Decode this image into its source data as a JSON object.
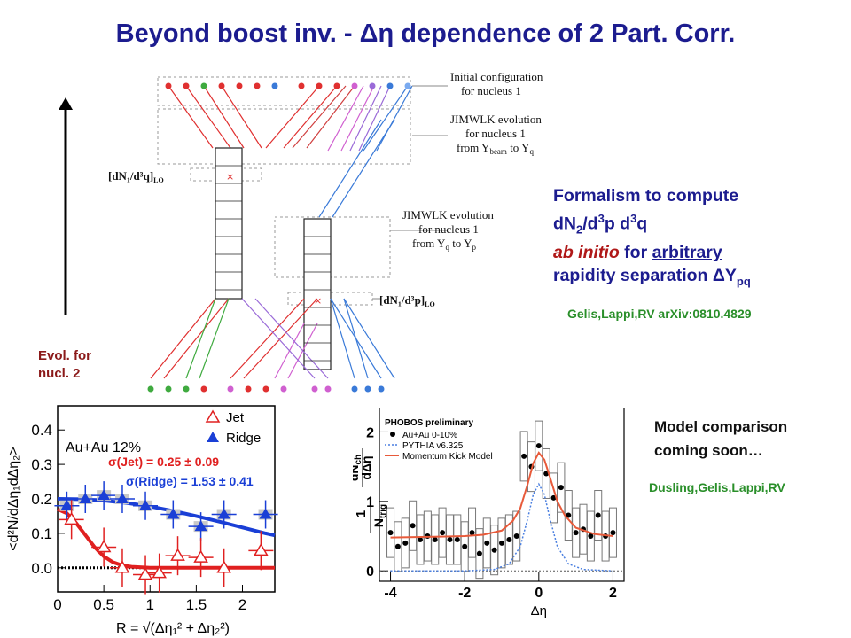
{
  "title": "Beyond boost inv. - Δη dependence of 2 Part. Corr.",
  "evol_label": [
    "Evol. for",
    "nucl. 2"
  ],
  "diagram": {
    "label_initial": [
      "Initial configuration",
      "for nucleus 1"
    ],
    "label_jimwlk1": [
      "JIMWLK evolution",
      "for nucleus 1",
      "from Y",
      "beam",
      " to Y",
      "q"
    ],
    "label_jimwlk2": [
      "JIMWLK evolution",
      "for nucleus 1",
      "from Y",
      "q",
      " to Y",
      "p"
    ],
    "label_dNq": "[dN₁/d³q]",
    "label_dNq_sub": "LO",
    "label_dNp": "[dN₁/d³p]",
    "label_dNp_sub": "LO"
  },
  "formalism": {
    "line1": "Formalism to compute",
    "line2_a": "dN",
    "line2_sub": "2",
    "line2_b": "/d",
    "line2_sup1": "3",
    "line2_c": "p d",
    "line2_sup2": "3",
    "line2_d": "q",
    "line3_a": "ab initio",
    "line3_b": " for ",
    "line3_c": "arbitrary",
    "line4_a": "rapidity separation ΔY",
    "line4_sub": "pq"
  },
  "citation1": "Gelis,Lappi,RV arXiv:0810.4829",
  "model_comparison": [
    "Model comparison",
    "coming soon…"
  ],
  "citation2": "Dusling,Gelis,Lappi,RV",
  "colors": {
    "title": "#1c1c8f",
    "red": "#e02020",
    "blue": "#1a3fd6",
    "green": "#2a8f2a",
    "orange_curve": "#e85a3a",
    "dotted_blue": "#4a7fe0"
  },
  "chart_data": [
    {
      "type": "scatter",
      "legend": [
        "Jet",
        "Ridge"
      ],
      "annotation_system": "Au+Au 12%",
      "annotation_jet": "σ(Jet)    =  0.25 ± 0.09",
      "annotation_ridge": "σ(Ridge) = 1.53 ± 0.41",
      "xlabel": "R = √(Δη₁² + Δη₂²)",
      "ylabel": "<d²N/dΔη₁dΔη₂>",
      "xlim": [
        0,
        2.35
      ],
      "ylim": [
        -0.07,
        0.47
      ],
      "xticks": [
        "0",
        "0.5",
        "1",
        "1.5",
        "2"
      ],
      "yticks": [
        "0.0",
        "0.1",
        "0.2",
        "0.3",
        "0.4"
      ],
      "series": [
        {
          "name": "Ridge",
          "x": [
            0.1,
            0.3,
            0.5,
            0.7,
            0.95,
            1.25,
            1.55,
            1.8,
            2.25
          ],
          "y": [
            0.18,
            0.2,
            0.21,
            0.2,
            0.18,
            0.155,
            0.12,
            0.155,
            0.155
          ]
        },
        {
          "name": "Jet",
          "x": [
            0.15,
            0.5,
            0.7,
            0.95,
            1.1,
            1.3,
            1.55,
            1.8,
            2.2
          ],
          "y": [
            0.14,
            0.06,
            0.0,
            -0.02,
            -0.015,
            0.035,
            0.03,
            0.0,
            0.05
          ]
        },
        {
          "name": "Ridge fit",
          "x": [
            0.0,
            0.25,
            0.5,
            0.75,
            1.0,
            1.25,
            1.5,
            1.75,
            2.0,
            2.25,
            2.35
          ],
          "y": [
            0.2,
            0.199,
            0.195,
            0.188,
            0.178,
            0.165,
            0.15,
            0.134,
            0.117,
            0.1,
            0.094
          ]
        },
        {
          "name": "Jet fit",
          "x": [
            0.0,
            0.1,
            0.2,
            0.3,
            0.4,
            0.5,
            0.6,
            0.7,
            0.8,
            1.0,
            1.4,
            2.35
          ],
          "y": [
            0.17,
            0.158,
            0.13,
            0.095,
            0.06,
            0.033,
            0.016,
            0.007,
            0.003,
            0.0,
            0.0,
            0.0
          ]
        }
      ]
    },
    {
      "type": "line",
      "annotation_title": "PHOBOS preliminary",
      "legend": [
        "Au+Au 0-10%",
        "PYTHIA v6.325",
        "Momentum Kick Model"
      ],
      "xlabel": "Δη",
      "ylabel_frac_top": "dN",
      "ylabel_frac_top_sub": "ch",
      "ylabel_frac_top2": "dΔη",
      "ylabel_frac_bottom": "N",
      "ylabel_frac_bottom_sub": "trig",
      "ylabel_prefix": "1",
      "xlim": [
        -4.3,
        2.3
      ],
      "ylim": [
        -0.15,
        2.35
      ],
      "xticks": [
        "-4",
        "-2",
        "0",
        "2"
      ],
      "yticks": [
        "0",
        "1",
        "2"
      ],
      "series": [
        {
          "name": "Au+Au 0-10%",
          "x": [
            -4.0,
            -3.8,
            -3.6,
            -3.4,
            -3.2,
            -3.0,
            -2.8,
            -2.6,
            -2.4,
            -2.2,
            -2.0,
            -1.8,
            -1.6,
            -1.4,
            -1.2,
            -1.0,
            -0.8,
            -0.6,
            -0.4,
            -0.2,
            0.0,
            0.2,
            0.4,
            0.6,
            0.8,
            1.0,
            1.2,
            1.4,
            1.6,
            1.8,
            2.0
          ],
          "y": [
            0.55,
            0.35,
            0.4,
            0.65,
            0.45,
            0.5,
            0.45,
            0.55,
            0.45,
            0.45,
            0.35,
            0.55,
            0.25,
            0.4,
            0.3,
            0.4,
            0.45,
            0.5,
            1.65,
            1.5,
            1.8,
            1.4,
            1.05,
            1.2,
            0.8,
            0.55,
            0.6,
            0.5,
            0.8,
            0.5,
            0.55
          ]
        },
        {
          "name": "Momentum Kick Model",
          "x": [
            -4.0,
            -3.0,
            -2.0,
            -1.5,
            -1.0,
            -0.7,
            -0.5,
            -0.3,
            -0.15,
            0.0,
            0.15,
            0.3,
            0.5,
            0.7,
            1.0,
            1.5,
            2.0
          ],
          "y": [
            0.48,
            0.49,
            0.5,
            0.52,
            0.58,
            0.72,
            0.9,
            1.25,
            1.55,
            1.7,
            1.6,
            1.35,
            1.0,
            0.8,
            0.62,
            0.53,
            0.5
          ]
        },
        {
          "name": "PYTHIA v6.325",
          "x": [
            -4.0,
            -2.0,
            -1.2,
            -0.8,
            -0.5,
            -0.3,
            -0.15,
            0.0,
            0.15,
            0.3,
            0.5,
            0.8,
            1.2,
            2.0
          ],
          "y": [
            0.0,
            0.0,
            0.02,
            0.1,
            0.35,
            0.75,
            1.1,
            1.25,
            1.1,
            0.75,
            0.35,
            0.1,
            0.02,
            0.0
          ]
        }
      ]
    }
  ]
}
